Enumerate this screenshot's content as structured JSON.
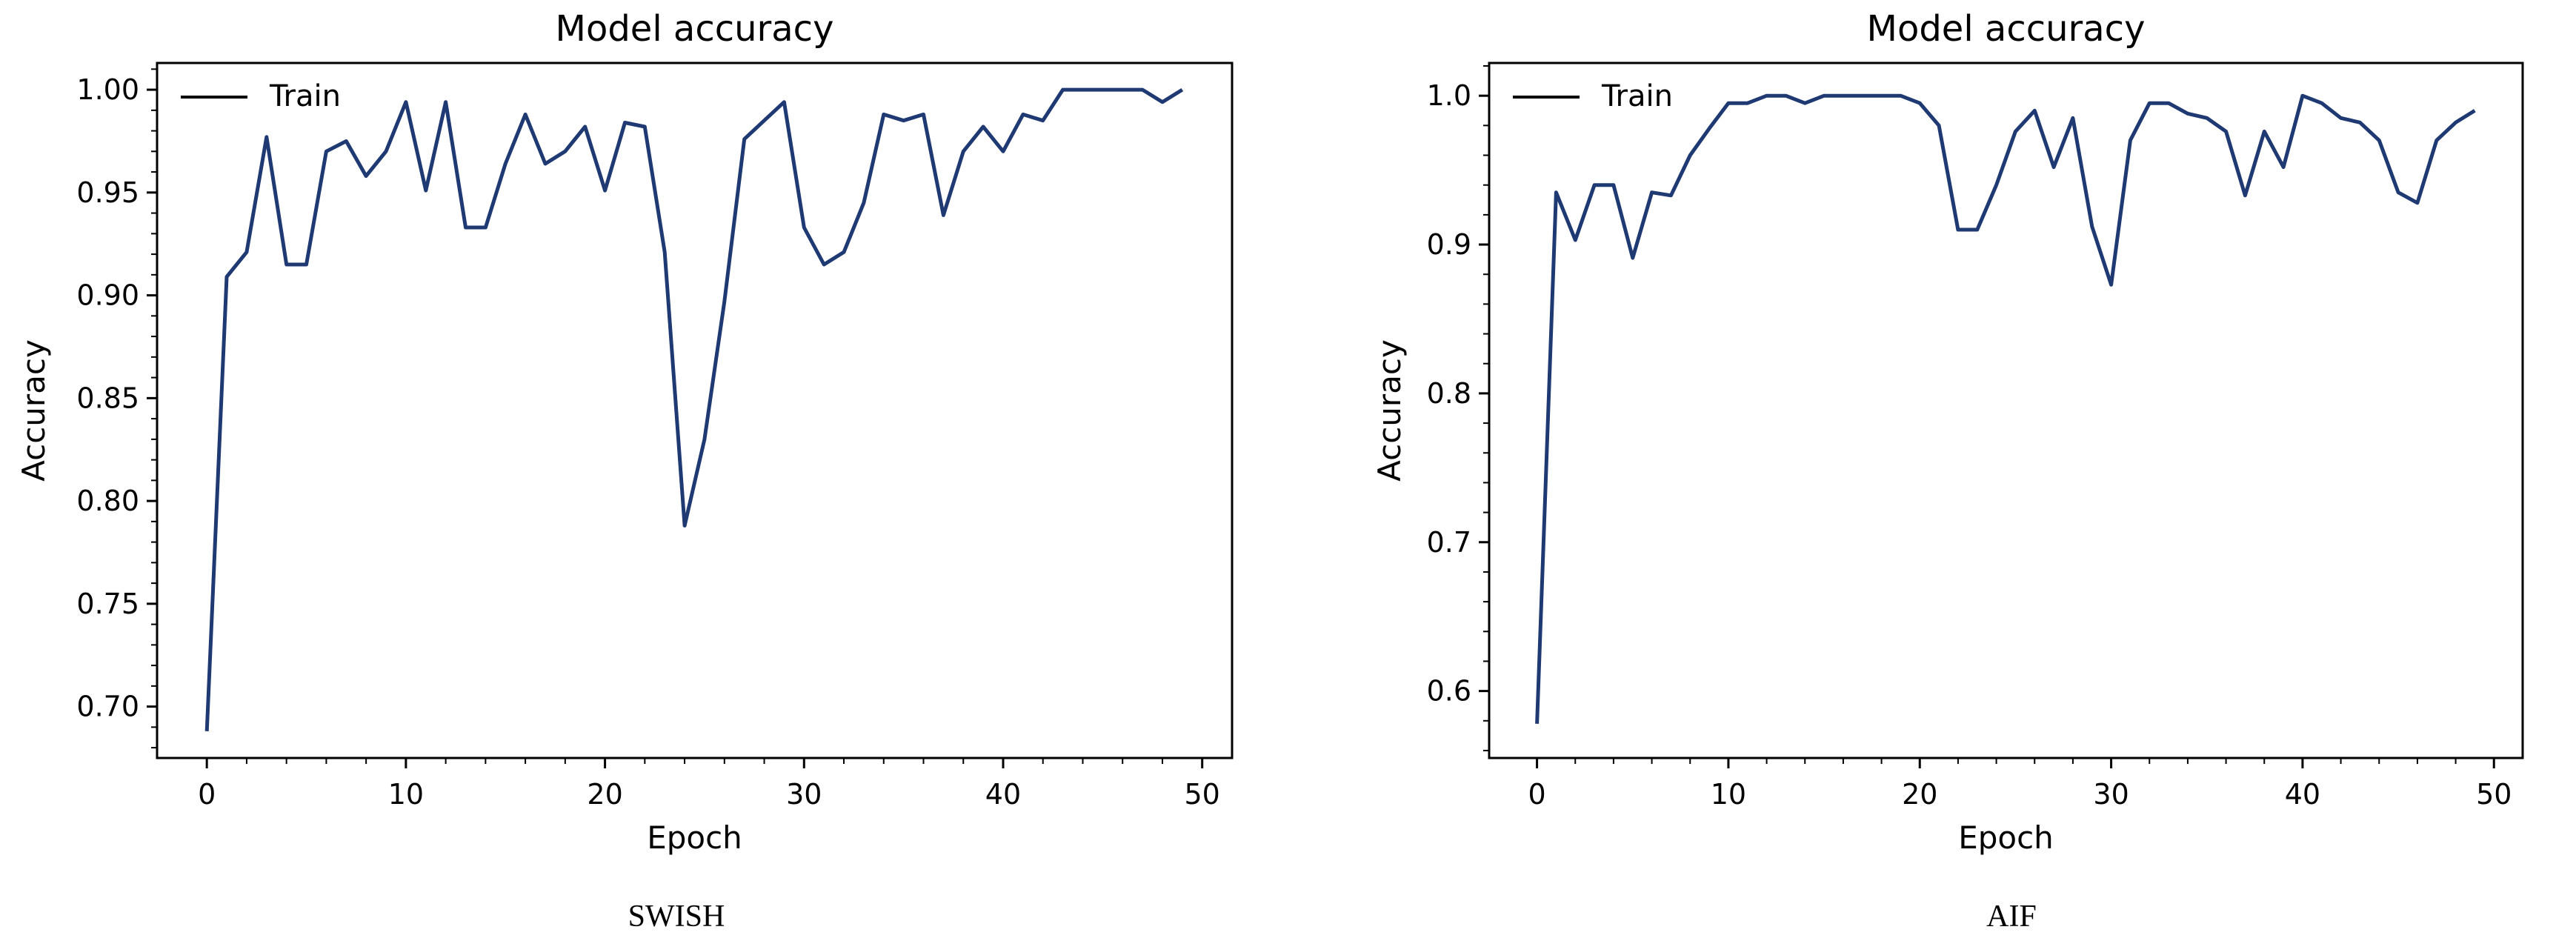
{
  "chart_data": [
    {
      "type": "line",
      "title": "Model accuracy",
      "xlabel": "Epoch",
      "ylabel": "Accuracy",
      "caption": "SWISH",
      "xlim": [
        -2.5,
        51.5
      ],
      "ylim": [
        0.675,
        1.013
      ],
      "xticks": [
        0,
        10,
        20,
        30,
        40,
        50
      ],
      "yticks": [
        0.7,
        0.75,
        0.8,
        0.85,
        0.9,
        0.95,
        1.0
      ],
      "ytick_labels": [
        "0.70",
        "0.75",
        "0.80",
        "0.85",
        "0.90",
        "0.95",
        "1.00"
      ],
      "grid": false,
      "legend_position": "top-left",
      "series": [
        {
          "name": "Train",
          "color": "#1f3a73",
          "x": [
            0,
            1,
            2,
            3,
            4,
            5,
            6,
            7,
            8,
            9,
            10,
            11,
            12,
            13,
            14,
            15,
            16,
            17,
            18,
            19,
            20,
            21,
            22,
            23,
            24,
            25,
            26,
            27,
            28,
            29,
            30,
            31,
            32,
            33,
            34,
            35,
            36,
            37,
            38,
            39,
            40,
            41,
            42,
            43,
            44,
            45,
            46,
            47,
            48,
            49
          ],
          "values": [
            0.688,
            0.909,
            0.921,
            0.977,
            0.915,
            0.915,
            0.97,
            0.975,
            0.958,
            0.97,
            0.994,
            0.951,
            0.994,
            0.933,
            0.933,
            0.964,
            0.988,
            0.964,
            0.97,
            0.982,
            0.951,
            0.984,
            0.982,
            0.921,
            0.788,
            0.83,
            0.897,
            0.976,
            0.985,
            0.994,
            0.933,
            0.915,
            0.921,
            0.945,
            0.988,
            0.985,
            0.988,
            0.939,
            0.97,
            0.982,
            0.97,
            0.988,
            0.985,
            1.0,
            1.0,
            1.0,
            1.0,
            1.0,
            0.994,
            1.0
          ]
        }
      ]
    },
    {
      "type": "line",
      "title": "Model accuracy",
      "xlabel": "Epoch",
      "ylabel": "Accuracy",
      "caption": "AIF",
      "xlim": [
        -2.5,
        51.5
      ],
      "ylim": [
        0.555,
        1.022
      ],
      "xticks": [
        0,
        10,
        20,
        30,
        40,
        50
      ],
      "yticks": [
        0.6,
        0.7,
        0.8,
        0.9,
        1.0
      ],
      "ytick_labels": [
        "0.6",
        "0.7",
        "0.8",
        "0.9",
        "1.0"
      ],
      "grid": false,
      "legend_position": "top-left",
      "series": [
        {
          "name": "Train",
          "color": "#1f3a73",
          "x": [
            0,
            1,
            2,
            3,
            4,
            5,
            6,
            7,
            8,
            9,
            10,
            11,
            12,
            13,
            14,
            15,
            16,
            17,
            18,
            19,
            20,
            21,
            22,
            23,
            24,
            25,
            26,
            27,
            28,
            29,
            30,
            31,
            32,
            33,
            34,
            35,
            36,
            37,
            38,
            39,
            40,
            41,
            42,
            43,
            44,
            45,
            46,
            47,
            48,
            49
          ],
          "values": [
            0.578,
            0.935,
            0.903,
            0.94,
            0.94,
            0.891,
            0.935,
            0.933,
            0.96,
            0.978,
            0.995,
            0.995,
            1.0,
            1.0,
            0.995,
            1.0,
            1.0,
            1.0,
            1.0,
            1.0,
            0.995,
            0.98,
            0.91,
            0.91,
            0.94,
            0.976,
            0.99,
            0.952,
            0.985,
            0.912,
            0.873,
            0.97,
            0.995,
            0.995,
            0.988,
            0.985,
            0.976,
            0.933,
            0.976,
            0.952,
            1.0,
            0.995,
            0.985,
            0.982,
            0.97,
            0.935,
            0.928,
            0.97,
            0.982,
            0.99
          ]
        }
      ]
    }
  ]
}
